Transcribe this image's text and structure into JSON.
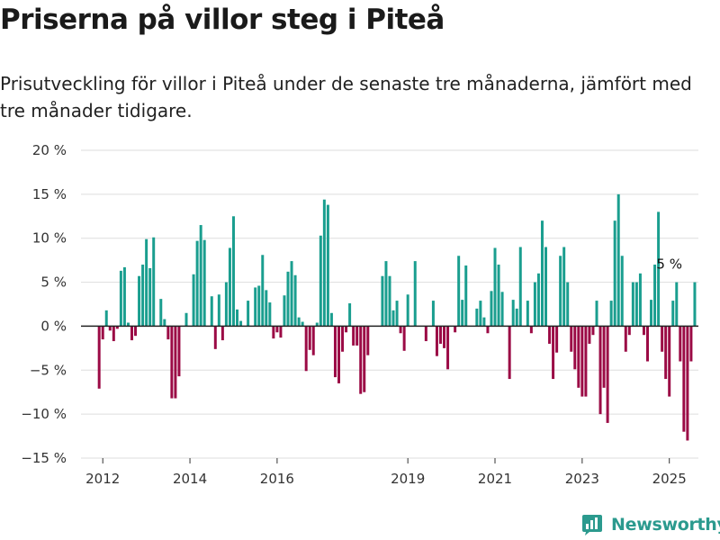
{
  "title": "Priserna på villor steg i Piteå",
  "subtitle": "Prisutveckling för villor i Piteå under de senaste tre månaderna, jämfört med tre månader tidigare.",
  "brand": "Newsworthy",
  "colors": {
    "positive": "#1a9e8f",
    "negative": "#9b0a45",
    "grid": "#dddddd",
    "zero_line": "#222222"
  },
  "chart_data": {
    "type": "bar",
    "x_start": "2011-12",
    "x_end": "2025-01",
    "ylim": [
      -15,
      20
    ],
    "y_ticks": [
      20,
      15,
      10,
      5,
      0,
      -5,
      -10,
      -15
    ],
    "y_tick_labels": [
      "20 %",
      "15 %",
      "10 %",
      "5 %",
      "0 %",
      "−5 %",
      "−10 %",
      "−15 %"
    ],
    "x_ticks": [
      2012,
      2014,
      2016,
      2019,
      2021,
      2023,
      2025
    ],
    "x_tick_labels": [
      "2012",
      "2014",
      "2016",
      "2019",
      "2021",
      "2023",
      "2025"
    ],
    "annotation": {
      "label": "5 %",
      "x": "2025-01",
      "value": 5
    },
    "grid": true,
    "legend": "none",
    "values": [
      -7.1,
      -1.5,
      1.8,
      -0.5,
      -1.7,
      -0.3,
      6.3,
      6.7,
      0.4,
      -1.6,
      -1.1,
      5.7,
      7.0,
      9.9,
      6.6,
      10.1,
      0.0,
      3.1,
      0.8,
      -1.5,
      -8.2,
      -8.2,
      -5.7,
      0.0,
      1.5,
      0.0,
      5.9,
      9.7,
      11.5,
      9.8,
      0.0,
      3.4,
      -2.6,
      3.6,
      -1.6,
      5.0,
      8.9,
      12.5,
      1.9,
      0.6,
      0.0,
      2.9,
      0.0,
      4.4,
      4.6,
      8.1,
      4.1,
      2.7,
      -1.4,
      -0.7,
      -1.3,
      3.5,
      6.2,
      7.4,
      5.8,
      1.0,
      0.5,
      -5.1,
      -2.7,
      -3.3,
      0.4,
      10.3,
      14.4,
      13.8,
      1.5,
      -5.8,
      -6.5,
      -2.9,
      -0.7,
      2.6,
      -2.2,
      -2.2,
      -7.7,
      -7.5,
      -3.3,
      0.0,
      0.0,
      0.0,
      5.7,
      7.4,
      5.7,
      1.8,
      2.9,
      -0.8,
      -2.8,
      3.6,
      0.0,
      7.4,
      0.0,
      0.0,
      -1.7,
      0.0,
      2.9,
      -3.4,
      -2.0,
      -2.5,
      -4.9,
      0.0,
      -0.7,
      8.0,
      3.0,
      6.9,
      0.0,
      0.0,
      2.0,
      2.9,
      1.0,
      -0.8,
      4.0,
      8.9,
      7.0,
      3.9,
      0.0,
      -6.0,
      3.0,
      2.0,
      9.0,
      0.0,
      2.9,
      -0.8,
      5.0,
      6.0,
      12.0,
      9.0,
      -2.0,
      -6.0,
      -3.0,
      8.0,
      9.0,
      5.0,
      -2.9,
      -4.9,
      -7.0,
      -8.0,
      -8.0,
      -2.0,
      -1.0,
      2.9,
      -10.0,
      -7.0,
      -11.0,
      2.9,
      12.0,
      15.0,
      8.0,
      -2.9,
      -1.0,
      5.0,
      5.0,
      6.0,
      -1.0,
      -4.0,
      3.0,
      7.0,
      13.0,
      -2.9,
      -6.0,
      -8.0,
      2.9,
      5.0,
      -4.0,
      -12.0,
      -13.0,
      -4.0,
      5.0
    ]
  }
}
